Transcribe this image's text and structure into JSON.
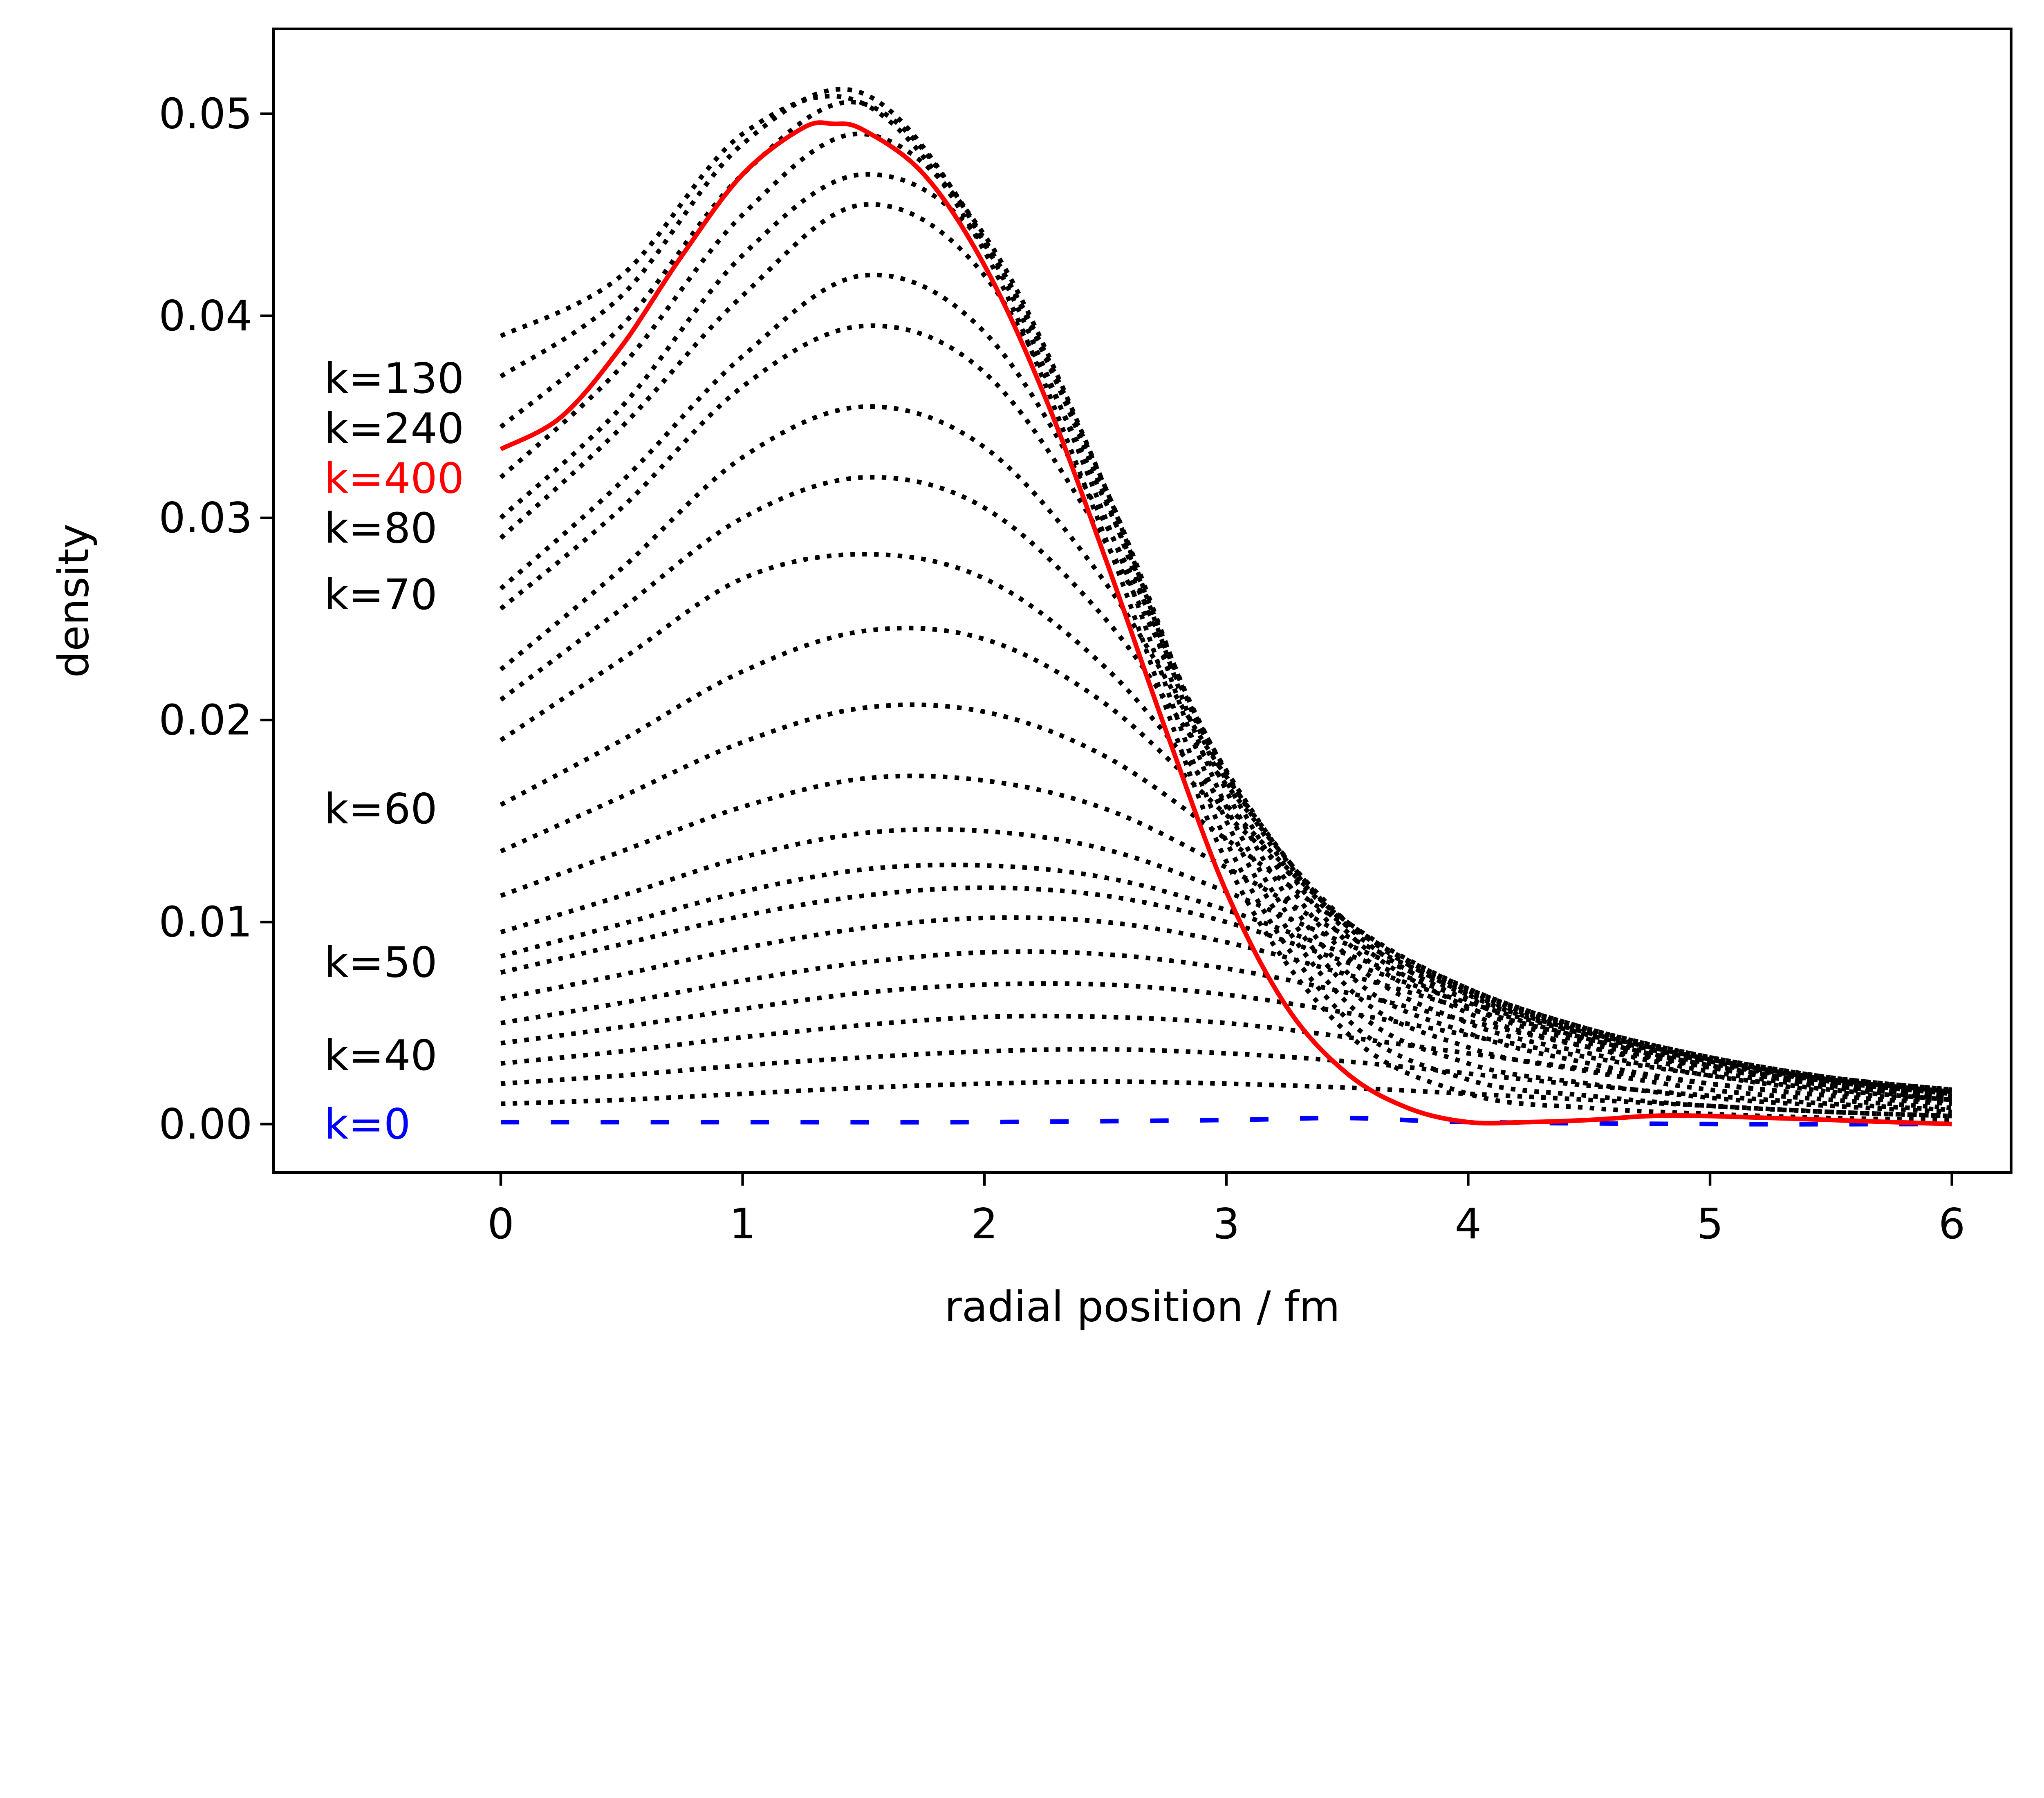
{
  "chart_data": {
    "type": "line",
    "title": "",
    "xlabel": "radial position / fm",
    "ylabel": "density",
    "xlim": [
      -0.94,
      6.245
    ],
    "ylim": [
      -0.0024,
      0.0542
    ],
    "grid": false,
    "xticks": [
      0,
      1,
      2,
      3,
      4,
      5,
      6
    ],
    "xtick_labels": [
      "0",
      "1",
      "2",
      "3",
      "4",
      "5",
      "6"
    ],
    "yticks": [
      0.0,
      0.01,
      0.02,
      0.03,
      0.04,
      0.05
    ],
    "ytick_labels": [
      "0.00",
      "0.01",
      "0.02",
      "0.03",
      "0.04",
      "0.05"
    ],
    "colors": {
      "dotted": "#000000",
      "final": "#ff0000",
      "initial": "#0000ff"
    },
    "dotted_x": [
      0,
      0.5,
      1,
      1.5,
      2,
      2.5,
      3,
      3.5,
      4,
      4.5,
      5,
      5.5,
      6
    ],
    "dotted_series": [
      [
        0.001,
        0.0012,
        0.0015,
        0.0018,
        0.002,
        0.0021,
        0.002,
        0.0018,
        0.0015,
        0.0012,
        0.0009,
        0.0006,
        0.0004
      ],
      [
        0.002,
        0.0024,
        0.0029,
        0.0033,
        0.0036,
        0.0037,
        0.0035,
        0.0031,
        0.0025,
        0.0019,
        0.0014,
        0.001,
        0.0007
      ],
      [
        0.003,
        0.0036,
        0.0043,
        0.0049,
        0.0053,
        0.0053,
        0.005,
        0.0043,
        0.0035,
        0.0027,
        0.002,
        0.0014,
        0.001
      ],
      [
        0.004,
        0.0048,
        0.0057,
        0.0065,
        0.0069,
        0.0069,
        0.0064,
        0.0055,
        0.0044,
        0.0033,
        0.0024,
        0.0017,
        0.0012
      ],
      [
        0.005,
        0.006,
        0.0071,
        0.008,
        0.0085,
        0.0084,
        0.0077,
        0.0065,
        0.0051,
        0.0038,
        0.0028,
        0.002,
        0.0014
      ],
      [
        0.0062,
        0.0074,
        0.0087,
        0.0097,
        0.0102,
        0.01,
        0.009,
        0.0074,
        0.0057,
        0.0042,
        0.003,
        0.0021,
        0.0015
      ],
      [
        0.0075,
        0.0089,
        0.0103,
        0.0113,
        0.0117,
        0.0113,
        0.01,
        0.008,
        0.006,
        0.0044,
        0.0031,
        0.0022,
        0.0016
      ],
      [
        0.0083,
        0.0099,
        0.0115,
        0.0126,
        0.0128,
        0.0122,
        0.0106,
        0.0084,
        0.0062,
        0.0045,
        0.0032,
        0.0022,
        0.0016
      ],
      [
        0.0095,
        0.0113,
        0.0132,
        0.0144,
        0.0145,
        0.0136,
        0.0115,
        0.0089,
        0.0064,
        0.0046,
        0.0033,
        0.0023,
        0.0016
      ],
      [
        0.0113,
        0.0135,
        0.0157,
        0.0171,
        0.017,
        0.0156,
        0.0127,
        0.0093,
        0.0066,
        0.0047,
        0.0033,
        0.0023,
        0.0017
      ],
      [
        0.0135,
        0.0162,
        0.0189,
        0.0206,
        0.0204,
        0.0182,
        0.0141,
        0.0098,
        0.0067,
        0.0047,
        0.0033,
        0.0023,
        0.0017
      ],
      [
        0.0158,
        0.019,
        0.0224,
        0.0244,
        0.024,
        0.0208,
        0.0153,
        0.01,
        0.0067,
        0.0047,
        0.0033,
        0.0023,
        0.0017
      ],
      [
        0.019,
        0.023,
        0.027,
        0.0282,
        0.027,
        0.0226,
        0.0158,
        0.01,
        0.0066,
        0.0046,
        0.0032,
        0.0022,
        0.0016
      ],
      [
        0.021,
        0.0255,
        0.03,
        0.032,
        0.0305,
        0.025,
        0.0168,
        0.01,
        0.0064,
        0.0044,
        0.0031,
        0.0021,
        0.0015
      ],
      [
        0.0225,
        0.0275,
        0.033,
        0.0355,
        0.0335,
        0.0268,
        0.0172,
        0.0098,
        0.0061,
        0.0042,
        0.0029,
        0.002,
        0.0014
      ],
      [
        0.0255,
        0.0305,
        0.0365,
        0.0395,
        0.0372,
        0.0288,
        0.0175,
        0.0095,
        0.0058,
        0.004,
        0.0028,
        0.0019,
        0.0013
      ],
      [
        0.0265,
        0.0318,
        0.038,
        0.042,
        0.0392,
        0.0297,
        0.0174,
        0.009,
        0.0055,
        0.0038,
        0.0026,
        0.0018,
        0.0012
      ],
      [
        0.029,
        0.0345,
        0.041,
        0.0455,
        0.042,
        0.0308,
        0.017,
        0.0083,
        0.005,
        0.0035,
        0.0024,
        0.0016,
        0.0011
      ],
      [
        0.03,
        0.0355,
        0.043,
        0.047,
        0.0435,
        0.0315,
        0.0165,
        0.0075,
        0.0045,
        0.003,
        0.002,
        0.0014,
        0.001
      ],
      [
        0.032,
        0.0375,
        0.045,
        0.049,
        0.044,
        0.0315,
        0.0157,
        0.0068,
        0.0038,
        0.0026,
        0.0017,
        0.0012,
        0.0008
      ],
      [
        0.0345,
        0.0395,
        0.047,
        0.0505,
        0.0438,
        0.031,
        0.015,
        0.006,
        0.003,
        0.002,
        0.0013,
        0.0009,
        0.0006
      ],
      [
        0.037,
        0.041,
        0.0485,
        0.051,
        0.0436,
        0.03,
        0.014,
        0.0052,
        0.0022,
        0.0014,
        0.0009,
        0.0006,
        0.0004
      ],
      [
        0.039,
        0.042,
        0.049,
        0.0505,
        0.0432,
        0.029,
        0.013,
        0.0045,
        0.0015,
        0.0008,
        0.0005,
        0.0003,
        0.0002
      ]
    ],
    "final_series": {
      "x": [
        0,
        0.25,
        0.5,
        0.75,
        1.0,
        1.25,
        1.375,
        1.5,
        1.75,
        2.0,
        2.25,
        2.5,
        2.75,
        3.0,
        3.25,
        3.5,
        3.75,
        4.0,
        4.25,
        4.5,
        4.75,
        5.0,
        5.5,
        6.0
      ],
      "y": [
        0.0334,
        0.035,
        0.0385,
        0.043,
        0.047,
        0.0493,
        0.0495,
        0.0492,
        0.047,
        0.0425,
        0.036,
        0.028,
        0.0195,
        0.0115,
        0.0058,
        0.0025,
        0.0008,
        0.0001,
        0.0001,
        0.0002,
        0.0004,
        0.0004,
        0.0002,
        0.0
      ]
    },
    "initial_series": {
      "x": [
        0,
        1,
        2,
        3,
        3.5,
        4,
        5,
        6
      ],
      "y": [
        0.0001,
        0.0001,
        0.0001,
        0.0002,
        0.0003,
        0.0001,
        0.0,
        0.0
      ]
    },
    "annotations": [
      {
        "text": "k=130",
        "x": -0.73,
        "y": 0.0369,
        "color": "#000000"
      },
      {
        "text": "k=240",
        "x": -0.73,
        "y": 0.0349,
        "color": "#000000"
      },
      {
        "text": "k=400",
        "x": -0.73,
        "y": 0.0333,
        "color": "#ff0000"
      },
      {
        "text": "k=80",
        "x": -0.73,
        "y": 0.0309,
        "color": "#000000"
      },
      {
        "text": "k=70",
        "x": -0.73,
        "y": 0.0262,
        "color": "#000000"
      },
      {
        "text": "k=60",
        "x": -0.73,
        "y": 0.0156,
        "color": "#000000"
      },
      {
        "text": "k=50",
        "x": -0.73,
        "y": 0.008,
        "color": "#000000"
      },
      {
        "text": "k=40",
        "x": -0.73,
        "y": 0.0034,
        "color": "#000000"
      },
      {
        "text": "k=0",
        "x": -0.73,
        "y": 0.0,
        "color": "#0000ff"
      }
    ]
  }
}
